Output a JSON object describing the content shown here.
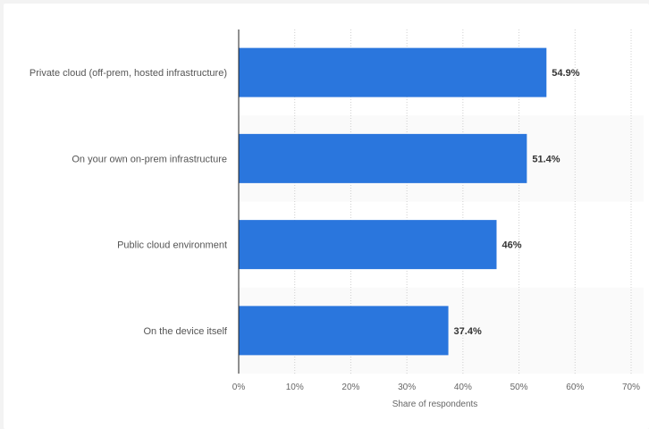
{
  "chart_data": {
    "type": "bar",
    "orientation": "horizontal",
    "categories": [
      "Private cloud (off-prem, hosted infrastructure)",
      "On your own on-prem infrastructure",
      "Public cloud environment",
      "On the device itself"
    ],
    "values": [
      54.9,
      51.4,
      46,
      37.4
    ],
    "value_labels": [
      "54.9%",
      "51.4%",
      "46%",
      "37.4%"
    ],
    "xlim": [
      0,
      70
    ],
    "x_ticks": [
      0,
      10,
      20,
      30,
      40,
      50,
      60,
      70
    ],
    "x_tick_labels": [
      "0%",
      "10%",
      "20%",
      "30%",
      "40%",
      "50%",
      "60%",
      "70%"
    ],
    "xlabel": "Share of respondents",
    "ylabel": "",
    "title": "",
    "grid": true,
    "bar_color": "#2a76dd"
  }
}
